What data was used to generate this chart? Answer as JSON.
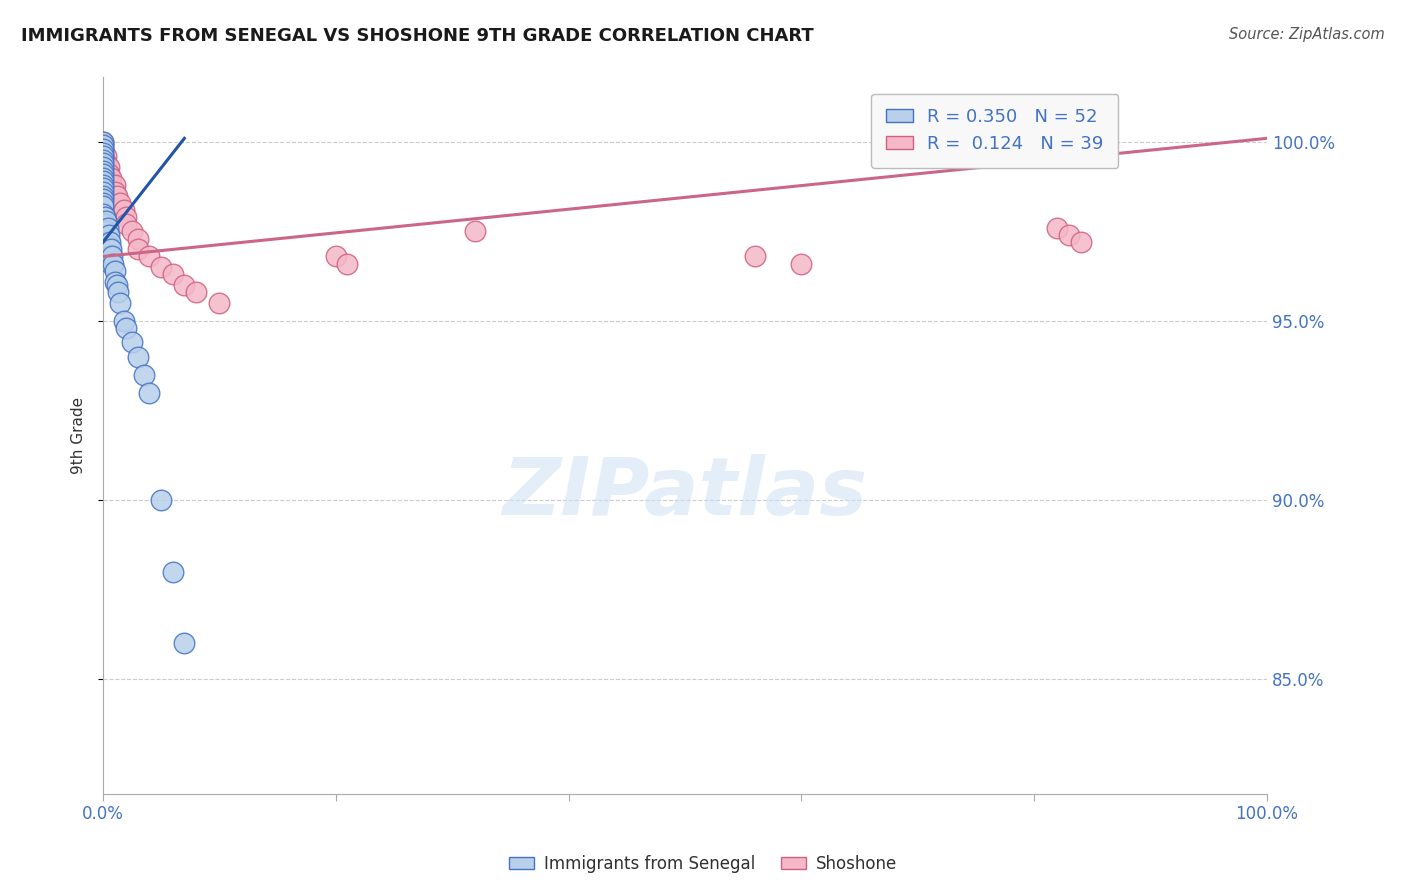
{
  "title": "IMMIGRANTS FROM SENEGAL VS SHOSHONE 9TH GRADE CORRELATION CHART",
  "source": "Source: ZipAtlas.com",
  "ylabel": "9th Grade",
  "watermark": "ZIPatlas",
  "senegal_R": 0.35,
  "senegal_N": 52,
  "shoshone_R": 0.124,
  "shoshone_N": 39,
  "xlim": [
    0.0,
    1.0
  ],
  "ylim": [
    0.818,
    1.018
  ],
  "yticks": [
    0.85,
    0.9,
    0.95,
    1.0
  ],
  "ytick_labels": [
    "85.0%",
    "90.0%",
    "95.0%",
    "100.0%"
  ],
  "xticks": [
    0.0,
    0.2,
    0.4,
    0.6,
    0.8,
    1.0
  ],
  "xtick_labels": [
    "0.0%",
    "",
    "",
    "",
    "",
    "100.0%"
  ],
  "blue_fill": "#b8d0ea",
  "blue_edge": "#4472c4",
  "pink_fill": "#f4b8c8",
  "pink_edge": "#d06080",
  "blue_line": "#2255aa",
  "pink_line": "#cc6688",
  "title_color": "#1a1a1a",
  "source_color": "#555555",
  "tick_color": "#4472c4",
  "label_color": "#333333",
  "grid_color": "#cccccc",
  "senegal_x": [
    0.0,
    0.0,
    0.0,
    0.0,
    0.0,
    0.0,
    0.0,
    0.0,
    0.0,
    0.0,
    0.0,
    0.0,
    0.0,
    0.0,
    0.0,
    0.0,
    0.0,
    0.0,
    0.0,
    0.0,
    0.002,
    0.002,
    0.002,
    0.002,
    0.003,
    0.003,
    0.003,
    0.004,
    0.004,
    0.005,
    0.005,
    0.005,
    0.006,
    0.006,
    0.007,
    0.007,
    0.008,
    0.009,
    0.01,
    0.01,
    0.012,
    0.013,
    0.015,
    0.018,
    0.02,
    0.025,
    0.03,
    0.035,
    0.04,
    0.05,
    0.06,
    0.07
  ],
  "senegal_y": [
    1.0,
    0.999,
    0.998,
    0.997,
    0.996,
    0.995,
    0.994,
    0.993,
    0.992,
    0.991,
    0.99,
    0.989,
    0.988,
    0.987,
    0.986,
    0.985,
    0.984,
    0.983,
    0.982,
    0.98,
    0.979,
    0.977,
    0.975,
    0.973,
    0.978,
    0.975,
    0.972,
    0.976,
    0.972,
    0.974,
    0.971,
    0.968,
    0.972,
    0.968,
    0.97,
    0.966,
    0.968,
    0.966,
    0.964,
    0.961,
    0.96,
    0.958,
    0.955,
    0.95,
    0.948,
    0.944,
    0.94,
    0.935,
    0.93,
    0.9,
    0.88,
    0.86
  ],
  "shoshone_x": [
    0.0,
    0.0,
    0.0,
    0.0,
    0.0,
    0.0,
    0.0,
    0.0,
    0.0,
    0.003,
    0.003,
    0.005,
    0.005,
    0.007,
    0.007,
    0.01,
    0.01,
    0.012,
    0.015,
    0.018,
    0.02,
    0.02,
    0.025,
    0.03,
    0.03,
    0.04,
    0.05,
    0.06,
    0.07,
    0.08,
    0.1,
    0.32,
    0.56,
    0.6,
    0.82,
    0.83,
    0.84,
    0.2,
    0.21
  ],
  "shoshone_y": [
    1.0,
    0.999,
    0.998,
    0.997,
    0.996,
    0.995,
    0.994,
    0.993,
    0.992,
    0.996,
    0.994,
    0.993,
    0.991,
    0.99,
    0.988,
    0.988,
    0.986,
    0.985,
    0.983,
    0.981,
    0.979,
    0.977,
    0.975,
    0.973,
    0.97,
    0.968,
    0.965,
    0.963,
    0.96,
    0.958,
    0.955,
    0.975,
    0.968,
    0.966,
    0.976,
    0.974,
    0.972,
    0.968,
    0.966
  ],
  "blue_trend_x": [
    0.0,
    0.07
  ],
  "blue_trend_y": [
    0.972,
    1.001
  ],
  "pink_trend_x": [
    0.0,
    1.0
  ],
  "pink_trend_y": [
    0.968,
    1.001
  ],
  "legend_facecolor": "#f8f8f8",
  "legend_edgecolor": "#bbbbbb"
}
